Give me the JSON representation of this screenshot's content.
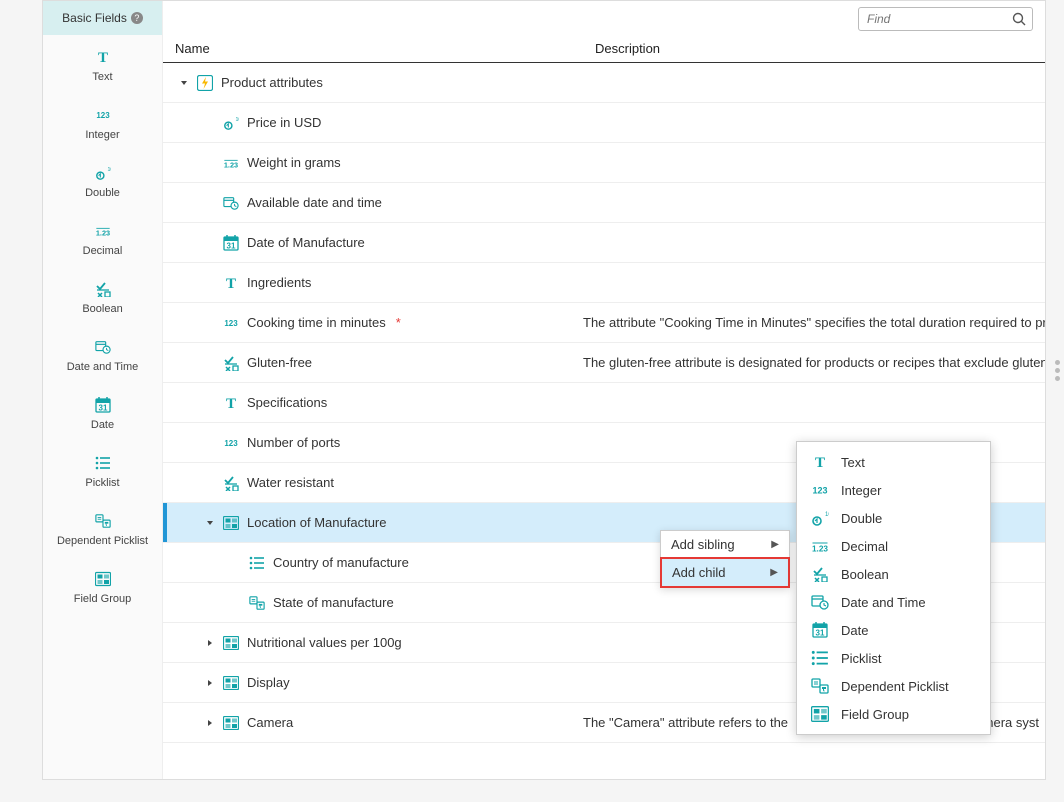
{
  "colors": {
    "teal": "#12a3a8",
    "accent_border": "#2196d6",
    "selected_bg": "#d4edfb",
    "highlight_border": "#e53935",
    "sidebar_header_bg": "#d7eff0",
    "text": "#333333",
    "muted": "#888888"
  },
  "sidebar": {
    "title": "Basic Fields",
    "items": [
      {
        "label": "Text",
        "icon": "text"
      },
      {
        "label": "Integer",
        "icon": "integer"
      },
      {
        "label": "Double",
        "icon": "double"
      },
      {
        "label": "Decimal",
        "icon": "decimal"
      },
      {
        "label": "Boolean",
        "icon": "boolean"
      },
      {
        "label": "Date and Time",
        "icon": "datetime"
      },
      {
        "label": "Date",
        "icon": "date"
      },
      {
        "label": "Picklist",
        "icon": "picklist"
      },
      {
        "label": "Dependent Picklist",
        "icon": "deppicklist"
      },
      {
        "label": "Field Group",
        "icon": "fieldgroup"
      }
    ]
  },
  "search": {
    "placeholder": "Find"
  },
  "table": {
    "headers": {
      "name": "Name",
      "description": "Description"
    },
    "rows": [
      {
        "indent": 0,
        "caret": "down",
        "icon": "bolt",
        "name": "Product attributes",
        "desc": "",
        "selected": false
      },
      {
        "indent": 1,
        "caret": "",
        "icon": "double",
        "name": "Price in USD",
        "desc": "",
        "selected": false
      },
      {
        "indent": 1,
        "caret": "",
        "icon": "decimal",
        "name": "Weight in grams",
        "desc": "",
        "selected": false
      },
      {
        "indent": 1,
        "caret": "",
        "icon": "datetime",
        "name": "Available date and time",
        "desc": "",
        "selected": false
      },
      {
        "indent": 1,
        "caret": "",
        "icon": "date",
        "name": "Date of Manufacture",
        "desc": "",
        "selected": false
      },
      {
        "indent": 1,
        "caret": "",
        "icon": "text",
        "name": "Ingredients",
        "desc": "",
        "selected": false
      },
      {
        "indent": 1,
        "caret": "",
        "icon": "integer",
        "name": "Cooking time in minutes",
        "desc": "The attribute \"Cooking Time in Minutes\" specifies the total duration required to prep",
        "required": true,
        "selected": false
      },
      {
        "indent": 1,
        "caret": "",
        "icon": "boolean",
        "name": "Gluten-free",
        "desc": "The gluten-free attribute is designated for products or recipes that exclude gluten, a",
        "selected": false
      },
      {
        "indent": 1,
        "caret": "",
        "icon": "text",
        "name": "Specifications",
        "desc": "",
        "selected": false
      },
      {
        "indent": 1,
        "caret": "",
        "icon": "integer",
        "name": "Number of ports",
        "desc": "",
        "selected": false
      },
      {
        "indent": 1,
        "caret": "",
        "icon": "boolean",
        "name": "Water resistant",
        "desc": "",
        "selected": false
      },
      {
        "indent": 1,
        "caret": "down",
        "icon": "fieldgroup",
        "name": "Location of Manufacture",
        "desc": "",
        "selected": true
      },
      {
        "indent": 2,
        "caret": "",
        "icon": "picklist",
        "name": "Country of manufacture",
        "desc": "",
        "selected": false
      },
      {
        "indent": 2,
        "caret": "",
        "icon": "deppicklist",
        "name": "State of manufacture",
        "desc": "",
        "selected": false
      },
      {
        "indent": 1,
        "caret": "right",
        "icon": "fieldgroup",
        "name": "Nutritional values per 100g",
        "desc": "",
        "selected": false
      },
      {
        "indent": 1,
        "caret": "right",
        "icon": "fieldgroup",
        "name": "Display",
        "desc": "",
        "selected": false
      },
      {
        "indent": 1,
        "caret": "right",
        "icon": "fieldgroup",
        "name": "Camera",
        "desc": "The \"Camera\" attribute refers to the",
        "selected": false,
        "desc_suffix": "nera syst"
      }
    ]
  },
  "context_menu": {
    "items": [
      {
        "label": "Add sibling",
        "submenu": true,
        "highlight": false
      },
      {
        "label": "Add child",
        "submenu": true,
        "highlight": true
      }
    ]
  },
  "flyout": {
    "items": [
      {
        "label": "Text",
        "icon": "text"
      },
      {
        "label": "Integer",
        "icon": "integer"
      },
      {
        "label": "Double",
        "icon": "double"
      },
      {
        "label": "Decimal",
        "icon": "decimal"
      },
      {
        "label": "Boolean",
        "icon": "boolean"
      },
      {
        "label": "Date and Time",
        "icon": "datetime"
      },
      {
        "label": "Date",
        "icon": "date"
      },
      {
        "label": "Picklist",
        "icon": "picklist"
      },
      {
        "label": "Dependent Picklist",
        "icon": "deppicklist"
      },
      {
        "label": "Field Group",
        "icon": "fieldgroup"
      }
    ]
  }
}
